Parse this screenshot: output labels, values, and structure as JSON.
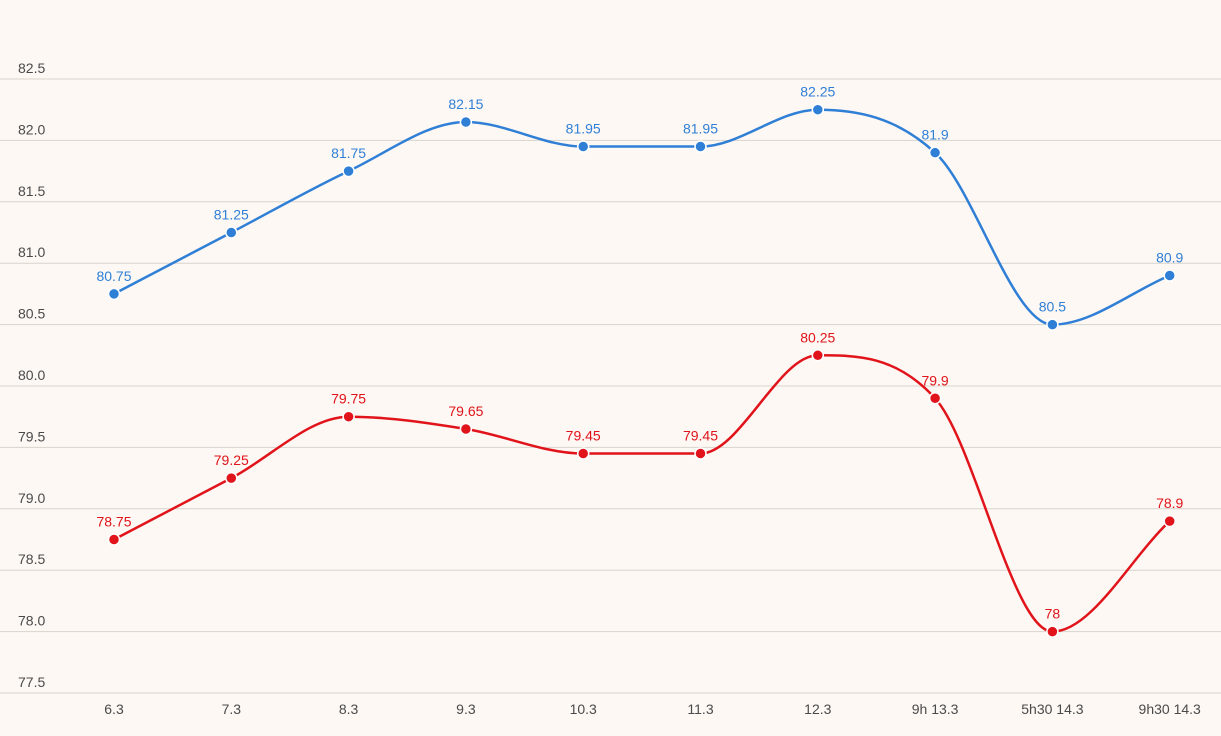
{
  "chart_data": {
    "type": "line",
    "categories": [
      "6.3",
      "7.3",
      "8.3",
      "9.3",
      "10.3",
      "11.3",
      "12.3",
      "9h 13.3",
      "5h30 14.3",
      "9h30 14.3"
    ],
    "series": [
      {
        "values": [
          80.75,
          81.25,
          81.75,
          82.15,
          81.95,
          81.95,
          82.25,
          81.9,
          80.5,
          80.9
        ],
        "labels": [
          "80.75",
          "81.25",
          "81.75",
          "82.15",
          "81.95",
          "81.95",
          "82.25",
          "81.9",
          "80.5",
          "80.9"
        ],
        "color": "#2f7fd6"
      },
      {
        "values": [
          78.75,
          79.25,
          79.75,
          79.65,
          79.45,
          79.45,
          80.25,
          79.9,
          78.0,
          78.9
        ],
        "labels": [
          "78.75",
          "79.25",
          "79.75",
          "79.65",
          "79.45",
          "79.45",
          "80.25",
          "79.9",
          "78",
          "78.9"
        ],
        "color": "#e0141a"
      }
    ],
    "yticks": [
      "77.5",
      "78.0",
      "78.5",
      "79.0",
      "79.5",
      "80.0",
      "80.5",
      "81.0",
      "81.5",
      "82.0",
      "82.5"
    ],
    "ylim": [
      77.5,
      82.5
    ],
    "grid": true,
    "legend": "none",
    "title": "",
    "xlabel": "",
    "ylabel": ""
  }
}
